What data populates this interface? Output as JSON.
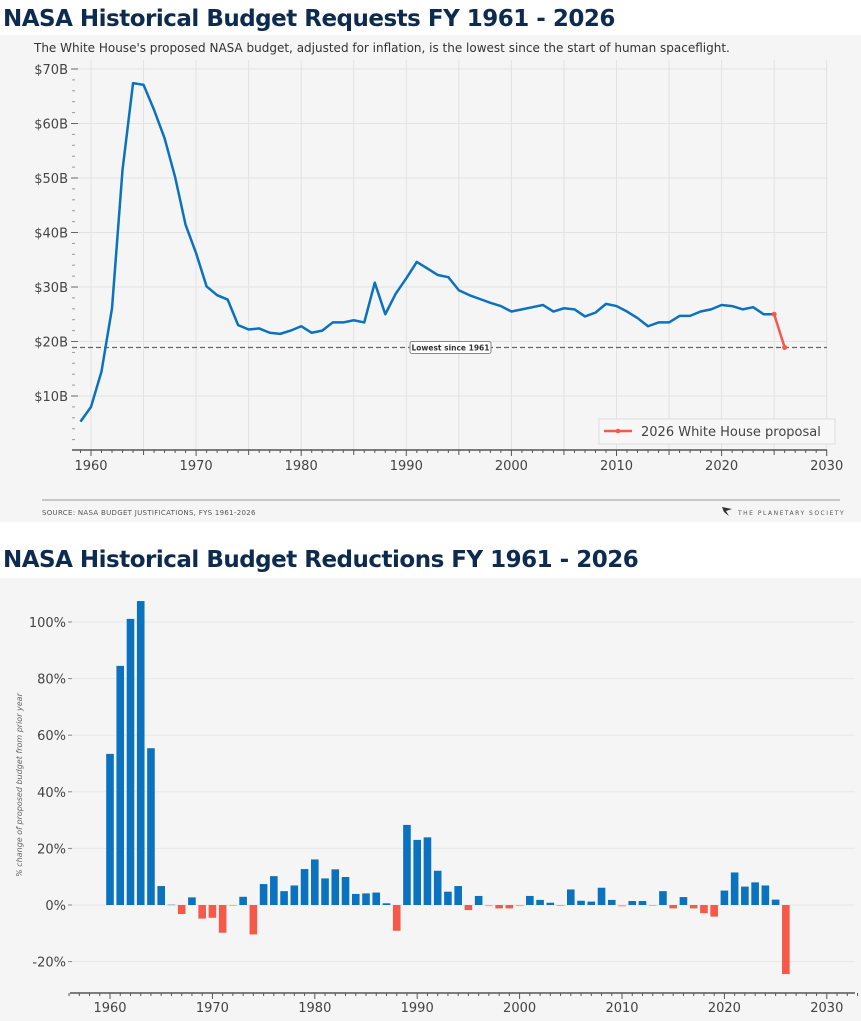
{
  "colors": {
    "series": "#0a72be",
    "proposal": "#f4594a",
    "title": "#0d2b4e",
    "panel": "#f5f5f5"
  },
  "chart_data": [
    {
      "type": "line",
      "title": "NASA Historical Budget Requests FY 1961 - 2026",
      "subtitle": "The White House's proposed NASA budget, adjusted for inflation, is the lowest since the start of human spaceflight.",
      "x": [
        1959,
        1960,
        1961,
        1962,
        1963,
        1964,
        1965,
        1966,
        1967,
        1968,
        1969,
        1970,
        1971,
        1972,
        1973,
        1974,
        1975,
        1976,
        1977,
        1978,
        1979,
        1980,
        1981,
        1982,
        1983,
        1984,
        1985,
        1986,
        1987,
        1988,
        1989,
        1990,
        1991,
        1992,
        1993,
        1994,
        1995,
        1996,
        1997,
        1998,
        1999,
        2000,
        2001,
        2002,
        2003,
        2004,
        2005,
        2006,
        2007,
        2008,
        2009,
        2010,
        2011,
        2012,
        2013,
        2014,
        2015,
        2016,
        2017,
        2018,
        2019,
        2020,
        2021,
        2022,
        2023,
        2024,
        2025
      ],
      "series": [
        {
          "values": [
            5.3,
            8.0,
            14.5,
            26.1,
            51.5,
            67.4,
            67.1,
            62.5,
            57.3,
            50.2,
            41.4,
            36.2,
            30.1,
            28.5,
            27.7,
            23.0,
            22.2,
            22.4,
            21.6,
            21.4,
            22.0,
            22.8,
            21.6,
            22.0,
            23.5,
            23.5,
            23.9,
            23.5,
            30.8,
            25.0,
            28.8,
            31.6,
            34.6,
            33.4,
            32.2,
            31.8,
            29.4,
            28.5,
            27.8,
            27.1,
            26.5,
            25.5,
            25.9,
            26.3,
            26.7,
            25.5,
            26.1,
            25.9,
            24.6,
            25.3,
            26.9,
            26.5,
            25.5,
            24.3,
            22.8,
            23.5,
            23.5,
            24.7,
            24.7,
            25.5,
            25.9,
            26.7,
            26.5,
            25.9,
            26.3,
            25.0,
            25.0
          ]
        },
        {
          "name": "2026 White House proposal",
          "x": [
            2025,
            2026
          ],
          "values": [
            25.0,
            18.9
          ]
        }
      ],
      "reference_line": {
        "value": 18.9,
        "label": "Lowest since 1961"
      },
      "xlim": [
        1958.5,
        2030
      ],
      "ylim": [
        0,
        70
      ],
      "xticks": [
        1960,
        1970,
        1980,
        1990,
        2000,
        2010,
        2020,
        2030
      ],
      "yticks": [
        10,
        20,
        30,
        40,
        50,
        60,
        70
      ],
      "ytick_labels": [
        "$10B",
        "$20B",
        "$30B",
        "$40B",
        "$50B",
        "$60B",
        "$70B"
      ],
      "grid": true,
      "legend": "bottom-right",
      "source": "SOURCE: NASA BUDGET JUSTIFICATIONS, FYS 1961-2026",
      "logo_text": "THE PLANETARY SOCIETY"
    },
    {
      "type": "bar",
      "title": "NASA Historical Budget Reductions FY 1961 - 2026",
      "ylabel": "% change of proposed budget from prior year",
      "categories": [
        1960,
        1961,
        1962,
        1963,
        1964,
        1965,
        1966,
        1967,
        1968,
        1969,
        1970,
        1971,
        1972,
        1973,
        1974,
        1975,
        1976,
        1977,
        1978,
        1979,
        1980,
        1981,
        1982,
        1983,
        1984,
        1985,
        1986,
        1987,
        1988,
        1989,
        1990,
        1991,
        1992,
        1993,
        1994,
        1995,
        1996,
        1997,
        1998,
        1999,
        2000,
        2001,
        2002,
        2003,
        2004,
        2005,
        2006,
        2007,
        2008,
        2009,
        2010,
        2011,
        2012,
        2013,
        2014,
        2015,
        2016,
        2017,
        2018,
        2019,
        2020,
        2021,
        2022,
        2023,
        2024,
        2025,
        2026
      ],
      "values": [
        53.4,
        84.5,
        101.1,
        107.4,
        55.4,
        6.7,
        0.2,
        -3.2,
        2.7,
        -4.8,
        -4.5,
        -9.8,
        -0.3,
        2.9,
        -10.4,
        7.4,
        10.2,
        4.9,
        6.9,
        12.7,
        16.1,
        9.4,
        12.6,
        9.9,
        3.9,
        4.1,
        4.4,
        0.6,
        -9.1,
        28.3,
        23.0,
        23.9,
        12.1,
        4.7,
        6.7,
        -1.8,
        3.2,
        -0.4,
        -1.2,
        -1.2,
        -0.4,
        3.2,
        1.8,
        0.8,
        0,
        5.5,
        1.5,
        1.2,
        6.1,
        1.8,
        -0.5,
        1.4,
        1.4,
        -0.3,
        4.9,
        -1.2,
        2.8,
        -1.2,
        -2.9,
        -4.1,
        5.1,
        11.5,
        6.5,
        8.0,
        6.9,
        1.9,
        -24.4
      ],
      "xlim": [
        1955,
        2033
      ],
      "ylim": [
        -30,
        110
      ],
      "xticks": [
        1960,
        1970,
        1980,
        1990,
        2000,
        2010,
        2020,
        2030
      ],
      "yticks": [
        -20,
        0,
        20,
        40,
        60,
        80,
        100
      ],
      "ytick_labels": [
        "-20%",
        "0%",
        "20%",
        "40%",
        "60%",
        "80%",
        "100%"
      ],
      "grid": true
    }
  ]
}
